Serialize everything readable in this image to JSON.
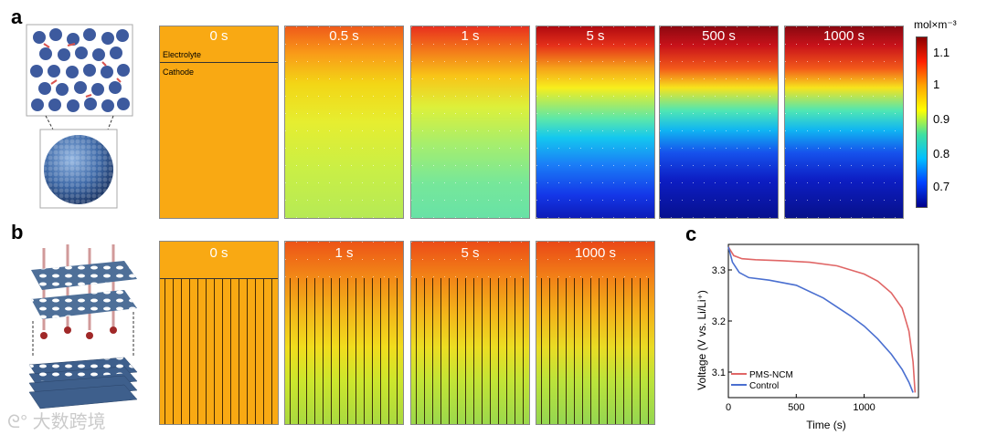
{
  "panel_labels": {
    "a": "a",
    "b": "b",
    "c": "c"
  },
  "panel_a": {
    "tiles": [
      {
        "time": "0 s"
      },
      {
        "time": "0.5 s"
      },
      {
        "time": "1 s"
      },
      {
        "time": "5 s"
      },
      {
        "time": "500 s"
      },
      {
        "time": "1000 s"
      }
    ],
    "electrolyte_label": "Electrolyte",
    "cathode_label": "Cathode",
    "colorbar": {
      "unit": "mol×m⁻³",
      "ticks": [
        "1.1",
        "1",
        "0.9",
        "0.8",
        "0.7"
      ],
      "colors": [
        "#8b0000",
        "#ff2000",
        "#ffa500",
        "#ffff00",
        "#40e0a0",
        "#00bfff",
        "#0040ff",
        "#00008b"
      ]
    }
  },
  "panel_b": {
    "tiles": [
      {
        "time": "0 s"
      },
      {
        "time": "1 s"
      },
      {
        "time": "5 s"
      },
      {
        "time": "1000 s"
      }
    ]
  },
  "watermark": "大数跨境",
  "chart_data": {
    "type": "line",
    "xlabel": "Time (s)",
    "ylabel": "Voltage (V vs. Li/Li⁺)",
    "xlim": [
      0,
      1400
    ],
    "ylim": [
      3.05,
      3.35
    ],
    "xticks": [
      0,
      500,
      1000
    ],
    "yticks": [
      3.1,
      3.2,
      3.3
    ],
    "legend_position": "bottom-left",
    "series": [
      {
        "name": "PMS-NCM",
        "color": "#e06666",
        "x": [
          0,
          40,
          100,
          200,
          400,
          600,
          800,
          1000,
          1100,
          1200,
          1280,
          1330,
          1360,
          1375
        ],
        "y": [
          3.345,
          3.328,
          3.322,
          3.32,
          3.318,
          3.315,
          3.308,
          3.292,
          3.278,
          3.255,
          3.225,
          3.18,
          3.12,
          3.06
        ]
      },
      {
        "name": "Control",
        "color": "#4a6fd0",
        "x": [
          0,
          30,
          80,
          150,
          300,
          500,
          700,
          900,
          1000,
          1100,
          1200,
          1280,
          1330,
          1360
        ],
        "y": [
          3.345,
          3.315,
          3.295,
          3.285,
          3.28,
          3.27,
          3.245,
          3.21,
          3.19,
          3.165,
          3.135,
          3.105,
          3.08,
          3.06
        ]
      }
    ]
  }
}
